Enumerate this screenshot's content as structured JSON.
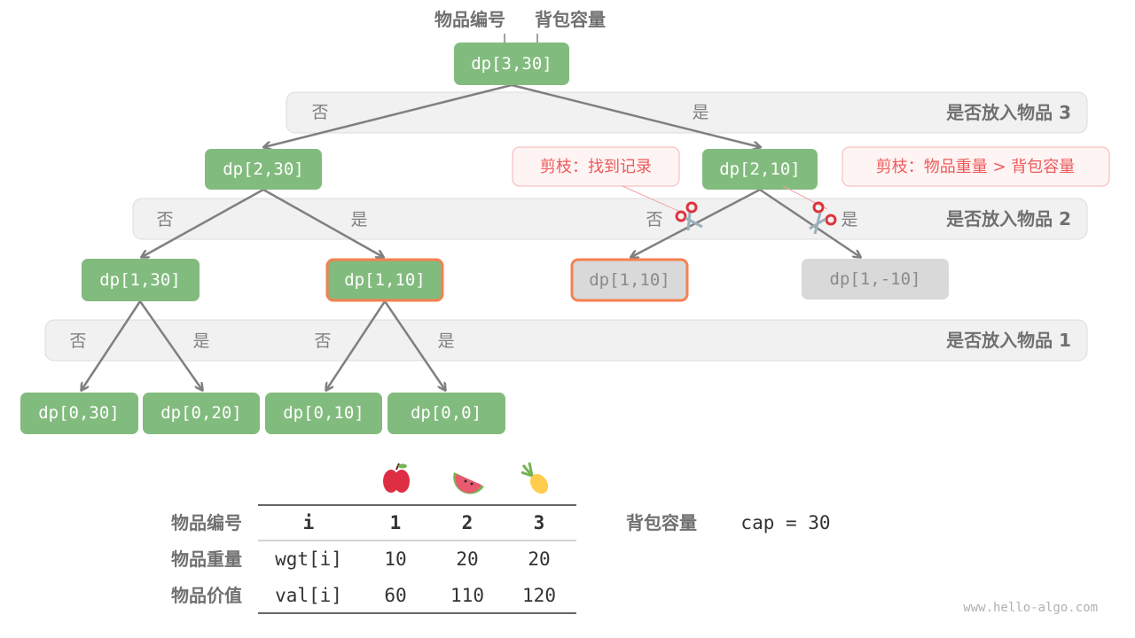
{
  "top_labels": {
    "item_index": "物品编号",
    "capacity": "背包容量"
  },
  "nodes": {
    "root": "dp[3,30]",
    "n2_30": "dp[2,30]",
    "n2_10": "dp[2,10]",
    "n1_30": "dp[1,30]",
    "n1_10": "dp[1,10]",
    "n1_10_pruned": "dp[1,10]",
    "n1_neg10": "dp[1,-10]",
    "n0_30": "dp[0,30]",
    "n0_20": "dp[0,20]",
    "n0_10": "dp[0,10]",
    "n0_0": "dp[0,0]"
  },
  "bands": {
    "item3": "是否放入物品 3",
    "item2": "是否放入物品 2",
    "item1": "是否放入物品 1"
  },
  "edge_labels": {
    "no": "否",
    "yes": "是"
  },
  "tooltips": {
    "memo": "剪枝：找到记录",
    "overweight": "剪枝：物品重量 > 背包容量"
  },
  "table": {
    "row_labels": [
      "物品编号",
      "物品重量",
      "物品价值"
    ],
    "header": [
      "i",
      "1",
      "2",
      "3"
    ],
    "wgt": [
      "wgt[i]",
      "10",
      "20",
      "20"
    ],
    "val": [
      "val[i]",
      "60",
      "110",
      "120"
    ],
    "fruits": [
      "apple-icon",
      "watermelon-icon",
      "pineapple-icon"
    ]
  },
  "capacity": {
    "label": "背包容量",
    "value": "cap = 30"
  },
  "watermark": "www.hello-algo.com",
  "colors": {
    "node": "#82bb7e",
    "highlight": "#f4814f",
    "pruned": "#d9d9d9",
    "band": "#f1f1f1",
    "tip": "#ee5a5a"
  }
}
